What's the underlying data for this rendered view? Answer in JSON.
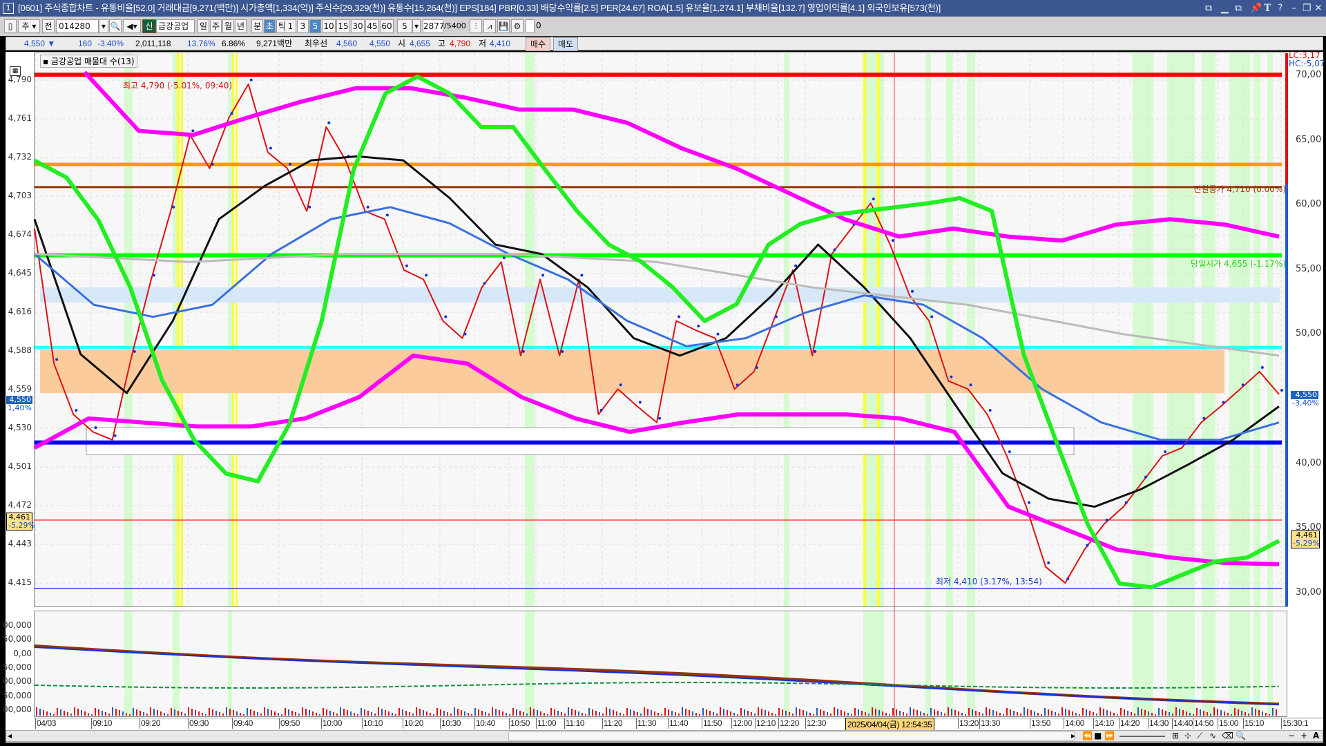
{
  "window": {
    "title_number": "1",
    "title": "[0601] 주식종합차트 - 유통비율[52.0] 거래대금[9,271(백만)] 시가총액[1,334(억)] 주식수[29,329(천)] 유통수[15,264(천)] EPS[184] PBR[0.33] 배당수익률[2.5] PER[24.67] ROA[1.5] 유보율[1,274.1] 부채비율[132.7] 영업이익률[4.1] 외국인보유[573(천)]",
    "controls": [
      "restore-tile-icon",
      "minimize-tile-icon",
      "cascade-icon",
      "pin-icon",
      "text-icon",
      "help-icon",
      "minimize-icon",
      "maximize-icon",
      "close-icon"
    ]
  },
  "toolbar": {
    "market": "주",
    "all_label": "전",
    "code": "014280",
    "new_badge": "신",
    "stock_name": "금강공업",
    "periods": [
      "일",
      "주",
      "월",
      "년",
      "분",
      "초",
      "틱"
    ],
    "selected_period": "초",
    "intervals": [
      "1",
      "3",
      "5",
      "10",
      "15",
      "30",
      "45",
      "60"
    ],
    "selected_interval": "5",
    "count_select": "5",
    "count": "2877",
    "count_max": "/5400",
    "checkbox_label": "0"
  },
  "info": {
    "price": "4,550 ▼",
    "change": "160",
    "change_pct": "-3.40%",
    "volume": "2,011,118",
    "turnover_pct": "13.76%",
    "ratio_pct": "6.86%",
    "amount": "9,271백만",
    "best_label": "최우선",
    "best_ask": "4,560",
    "best_bid": "4,550",
    "open_label": "시",
    "open": "4,655",
    "high_label": "고",
    "high": "4,790",
    "low_label": "저",
    "low": "4,410",
    "buy_label": "매수",
    "sell_label": "매도"
  },
  "chart_data": {
    "type": "line",
    "legend": "금강공업 매물대 수(13)",
    "left_axis_ticks": [
      "4,790",
      "4,761",
      "4,732",
      "4,703",
      "4,674",
      "4,645",
      "4,616",
      "4,588",
      "4,559",
      "4,530",
      "4,501",
      "4,472",
      "4,443",
      "4,415"
    ],
    "right_axis_ticks": [
      "70,00",
      "65,00",
      "60,00",
      "55,00",
      "50,00",
      "40,00",
      "35,00",
      "30,00"
    ],
    "x_ticks": [
      "04/03",
      "09:10",
      "09:20",
      "09:30",
      "09:40",
      "09:50",
      "10:00",
      "10:10",
      "10:20",
      "10:30",
      "10:40",
      "10:50",
      "11:00",
      "11:10",
      "11:20",
      "11:30",
      "11:40",
      "11:50",
      "12:00",
      "12:10",
      "12:20",
      "12:30",
      "13:20",
      "13:30",
      "13:50",
      "14:00",
      "14:10",
      "14:20",
      "14:30",
      "14:40",
      "14:50",
      "15:00",
      "15:10",
      "15:30:1"
    ],
    "crosshair_time": "2025/04/04(금) 12:54:35",
    "ylim": [
      4410,
      4795
    ],
    "right_ylim": [
      30,
      70
    ],
    "grid": true,
    "annotations": {
      "high": "최고 4,790 (-5.01%, 09:40)",
      "prev_close": "전일종가 4,710 (0.00%)",
      "today_open": "당일시가 4,655 (-1.17%)",
      "low": "최저 4,410 (3.17%, 13:54)",
      "lc": "LC:3,17",
      "hc": "HC:-5,07"
    },
    "price_badges": {
      "current": "4,550",
      "current_left_pct": "1,40%",
      "current_right_pct": "-3,40%",
      "cross": "4,461",
      "cross_pct": "-5,29%"
    },
    "horizontal_lines": [
      {
        "price": 4794,
        "color": "#ff0000"
      },
      {
        "price": 4727,
        "color": "#ff9900"
      },
      {
        "price": 4710,
        "color": "#993300"
      },
      {
        "price": 4659,
        "color": "#00ff00"
      },
      {
        "price": 4590,
        "color": "#33ffff"
      },
      {
        "price": 4519,
        "color": "#0000ff"
      },
      {
        "price": 4461,
        "color": "#ff0000"
      },
      {
        "price": 4410,
        "color": "#0000cc"
      }
    ],
    "series": [
      {
        "axis": "left",
        "color": "#e01010",
        "values": [
          4679,
          4578,
          4540,
          4527,
          4521,
          4584,
          4641,
          4692,
          4749,
          4724,
          4762,
          4787,
          4736,
          4724,
          4692,
          4755,
          4730,
          4692,
          4686,
          4648,
          4641,
          4610,
          4597,
          4635,
          4654,
          4584,
          4641,
          4584,
          4641,
          4540,
          4559,
          4546,
          4534,
          4610,
          4603,
          4597,
          4559,
          4572,
          4610,
          4648,
          4584,
          4660,
          4679,
          4698,
          4667,
          4629,
          4610,
          4565,
          4559,
          4540,
          4509,
          4471,
          4426,
          4414,
          4439,
          4458,
          4471,
          4490,
          4509,
          4515,
          4534,
          4546,
          4559,
          4572,
          4555
        ]
      },
      {
        "axis": "left",
        "color": "#ff00ff",
        "start": 0.04,
        "values": [
          4796,
          4752,
          4749,
          4762,
          4774,
          4784,
          4784,
          4777,
          4768,
          4768,
          4758,
          4739,
          4724,
          4705,
          4686,
          4673,
          4679,
          4673,
          4670,
          4682,
          4686,
          4682,
          4673
        ]
      },
      {
        "axis": "left",
        "color": "#ff00ff",
        "values": [
          4515,
          4537,
          4534,
          4531,
          4531,
          4537,
          4553,
          4584,
          4578,
          4553,
          4537,
          4527,
          4534,
          4540,
          4540,
          4540,
          4537,
          4527,
          4471,
          4455,
          4439,
          4433,
          4429,
          4428
        ]
      },
      {
        "axis": "left",
        "color": "#111111",
        "values": [
          4686,
          4585,
          4556,
          4610,
          4686,
          4711,
          4730,
          4733,
          4730,
          4702,
          4667,
          4660,
          4635,
          4597,
          4584,
          4597,
          4629,
          4667,
          4635,
          4597,
          4546,
          4496,
          4477,
          4471,
          4484,
          4502,
          4521,
          4546
        ]
      },
      {
        "axis": "left",
        "color": "#3a6fe0",
        "values": [
          4660,
          4622,
          4613,
          4622,
          4660,
          4686,
          4695,
          4683,
          4660,
          4641,
          4610,
          4591,
          4597,
          4616,
          4629,
          4622,
          4597,
          4559,
          4534,
          4521,
          4521,
          4534
        ]
      },
      {
        "axis": "left",
        "color": "#bbbbbb",
        "values": [
          4660,
          4654,
          4660,
          4660,
          4654,
          4635,
          4622,
          4600,
          4584
        ]
      },
      {
        "axis": "right",
        "color": "#22ee22",
        "values": [
          63.4,
          62.1,
          58.8,
          53.6,
          46.4,
          41.8,
          39.2,
          38.6,
          43.1,
          51,
          62.7,
          68.6,
          69.9,
          68.6,
          66,
          66,
          62.7,
          59.5,
          56.9,
          55.6,
          53.6,
          51,
          52.3,
          56.9,
          58.5,
          59.2,
          59.5,
          59.8,
          60.1,
          60.5,
          59.5,
          48.4,
          41.8,
          35.3,
          30.7,
          30.4,
          31.4,
          32.4,
          32.7,
          34
        ]
      }
    ]
  }
}
